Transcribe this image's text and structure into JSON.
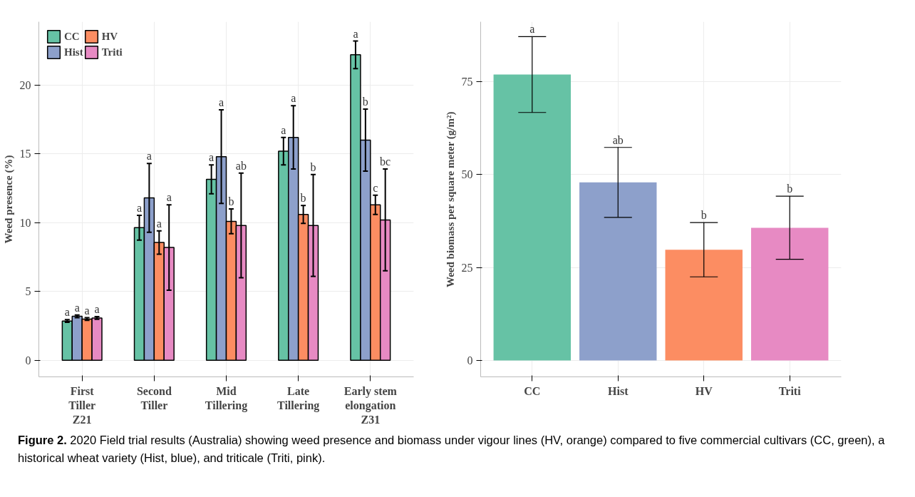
{
  "chart_data": [
    {
      "type": "bar",
      "ylabel": "Weed presence (%)",
      "categories": [
        "First\nTiller\nZ21",
        "Second\nTiller",
        "Mid\nTillering",
        "Late\nTillering",
        "Early stem\nelongation\nZ31"
      ],
      "series": [
        {
          "name": "CC",
          "color": "#66c2a5",
          "values": [
            2.86,
            9.64,
            13.15,
            15.2,
            22.2
          ],
          "errors": [
            0.1,
            0.9,
            1.05,
            1.0,
            1.0
          ],
          "value_labels": [
            null,
            null,
            null,
            null,
            "a"
          ]
        },
        {
          "name": "Hist",
          "color": "#8da0cb",
          "values": [
            3.2,
            11.8,
            14.8,
            16.2,
            16.0
          ],
          "errors": [
            0.1,
            2.5,
            3.4,
            2.3,
            2.25
          ]
        },
        {
          "name": "HV",
          "color": "#fc8d62",
          "values": [
            3.0,
            8.56,
            10.1,
            10.6,
            11.3
          ],
          "errors": [
            0.1,
            0.85,
            0.9,
            0.65,
            0.7
          ]
        },
        {
          "name": "Triti",
          "color": "#e78ac3",
          "values": [
            3.08,
            8.2,
            9.8,
            9.8,
            10.2
          ],
          "errors": [
            0.1,
            3.1,
            3.8,
            3.7,
            3.7
          ]
        }
      ],
      "ylim": [
        -1.2,
        24.6
      ],
      "yticks": [
        0,
        5,
        10,
        15,
        20
      ],
      "grid": true,
      "legend": "top left",
      "annotations": [
        {
          "text": "a",
          "x": "First\nTiller\nZ21",
          "y": 2.96
        },
        {
          "text": "a",
          "x": "First\nTiller\nZ21",
          "y": 3.3
        },
        {
          "text": "a",
          "x": "First\nTiller\nZ21",
          "y": 3.1
        },
        {
          "text": "a",
          "x": "First\nTiller\nZ21",
          "y": 3.18
        },
        {
          "text": "a",
          "x": "Second\nTiller",
          "y": 10.54
        },
        {
          "text": "a",
          "x": "Second\nTiller",
          "y": 14.3
        },
        {
          "text": "a",
          "x": "Second\nTiller",
          "y": 9.41
        },
        {
          "text": "a",
          "x": "Second\nTiller",
          "y": 11.3
        },
        {
          "text": "a",
          "x": "Mid\nTillering",
          "y": 14.2
        },
        {
          "text": "a",
          "x": "Mid\nTillering",
          "y": 18.2
        },
        {
          "text": "b",
          "x": "Mid\nTillering",
          "y": 11.0
        },
        {
          "text": "ab",
          "x": "Mid\nTillering",
          "y": 13.6
        },
        {
          "text": "a",
          "x": "Late\nTillering",
          "y": 16.2
        },
        {
          "text": "a",
          "x": "Late\nTillering",
          "y": 18.5
        },
        {
          "text": "b",
          "x": "Late\nTillering",
          "y": 11.25
        },
        {
          "text": "b",
          "x": "Late\nTillering",
          "y": 13.5
        },
        {
          "text": "b",
          "x": "Early stem\nelongation\nZ31",
          "y": 18.25
        },
        {
          "text": "c",
          "x": "Early stem\nelongation\nZ31",
          "y": 12.0
        },
        {
          "text": "bc",
          "x": "Early stem\nelongation\nZ31",
          "y": 13.9
        },
        "Figure 2. 2020 Field trial results (Australia) showing weed presence and biomass under vigour lines (HV, orange) compared to five commercial cultivars (CC, green), a historical wheat variety (Hist, blue), and triticale (Triti, pink)."
      ]
    },
    {
      "type": "bar",
      "ylabel": "Weed biomass per square meter (g/m²)",
      "categories": [
        "CC",
        "Hist",
        "HV",
        "Triti"
      ],
      "values": [
        76.9,
        47.9,
        29.8,
        35.7
      ],
      "colors": [
        "#66c2a5",
        "#8da0cb",
        "#fc8d62",
        "#e78ac3"
      ],
      "errors": [
        10.2,
        9.4,
        7.3,
        8.5
      ],
      "ylim": [
        -4.4,
        91.1
      ],
      "yticks": [
        0,
        25,
        50,
        75
      ],
      "grid": true,
      "annotations": [
        {
          "text": "a",
          "x": "CC",
          "y": 87.1
        },
        {
          "text": "ab",
          "x": "Hist",
          "y": 57.3
        },
        {
          "text": "b",
          "x": "HV",
          "y": 37.1
        },
        {
          "text": "b",
          "x": "Triti",
          "y": 44.2
        }
      ]
    }
  ]
}
